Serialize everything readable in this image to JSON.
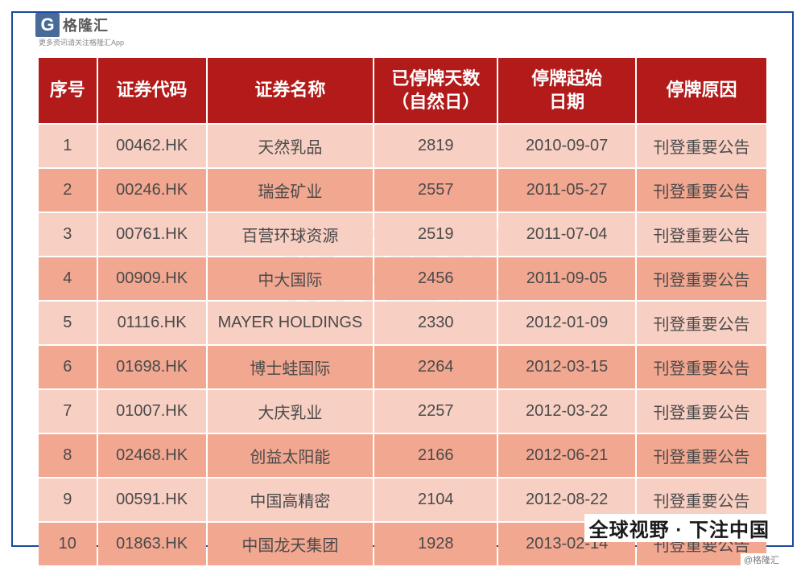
{
  "logo": {
    "g": "G",
    "name": "格隆汇",
    "sub": "更多资讯请关注格隆汇App",
    "url": "www.gelonghui.com"
  },
  "watermark": {
    "main": "格隆汇",
    "sub": "gelonghui.com"
  },
  "footer": {
    "tag": "全球视野 · 下注中国",
    "handle": "@格隆汇"
  },
  "table": {
    "columns": [
      "序号",
      "证券代码",
      "证券名称",
      "已停牌天数（自然日）",
      "停牌起始日期",
      "停牌原因"
    ],
    "header_bg": "#b31b1b",
    "header_fg": "#ffffff",
    "row_odd_bg": "#f8cfc3",
    "row_even_bg": "#f2a790",
    "text_color": "#4a4a4a",
    "rows": [
      {
        "seq": "1",
        "code": "00462.HK",
        "name": "天然乳品",
        "days": "2819",
        "date": "2010-09-07",
        "reason": "刊登重要公告"
      },
      {
        "seq": "2",
        "code": "00246.HK",
        "name": "瑞金矿业",
        "days": "2557",
        "date": "2011-05-27",
        "reason": "刊登重要公告"
      },
      {
        "seq": "3",
        "code": "00761.HK",
        "name": "百营环球资源",
        "days": "2519",
        "date": "2011-07-04",
        "reason": "刊登重要公告"
      },
      {
        "seq": "4",
        "code": "00909.HK",
        "name": "中大国际",
        "days": "2456",
        "date": "2011-09-05",
        "reason": "刊登重要公告"
      },
      {
        "seq": "5",
        "code": "01116.HK",
        "name": "MAYER HOLDINGS",
        "days": "2330",
        "date": "2012-01-09",
        "reason": "刊登重要公告"
      },
      {
        "seq": "6",
        "code": "01698.HK",
        "name": "博士蛙国际",
        "days": "2264",
        "date": "2012-03-15",
        "reason": "刊登重要公告"
      },
      {
        "seq": "7",
        "code": "01007.HK",
        "name": "大庆乳业",
        "days": "2257",
        "date": "2012-03-22",
        "reason": "刊登重要公告"
      },
      {
        "seq": "8",
        "code": "02468.HK",
        "name": "创益太阳能",
        "days": "2166",
        "date": "2012-06-21",
        "reason": "刊登重要公告"
      },
      {
        "seq": "9",
        "code": "00591.HK",
        "name": "中国高精密",
        "days": "2104",
        "date": "2012-08-22",
        "reason": "刊登重要公告"
      },
      {
        "seq": "10",
        "code": "01863.HK",
        "name": "中国龙天集团",
        "days": "1928",
        "date": "2013-02-14",
        "reason": "刊登重要公告"
      }
    ]
  }
}
